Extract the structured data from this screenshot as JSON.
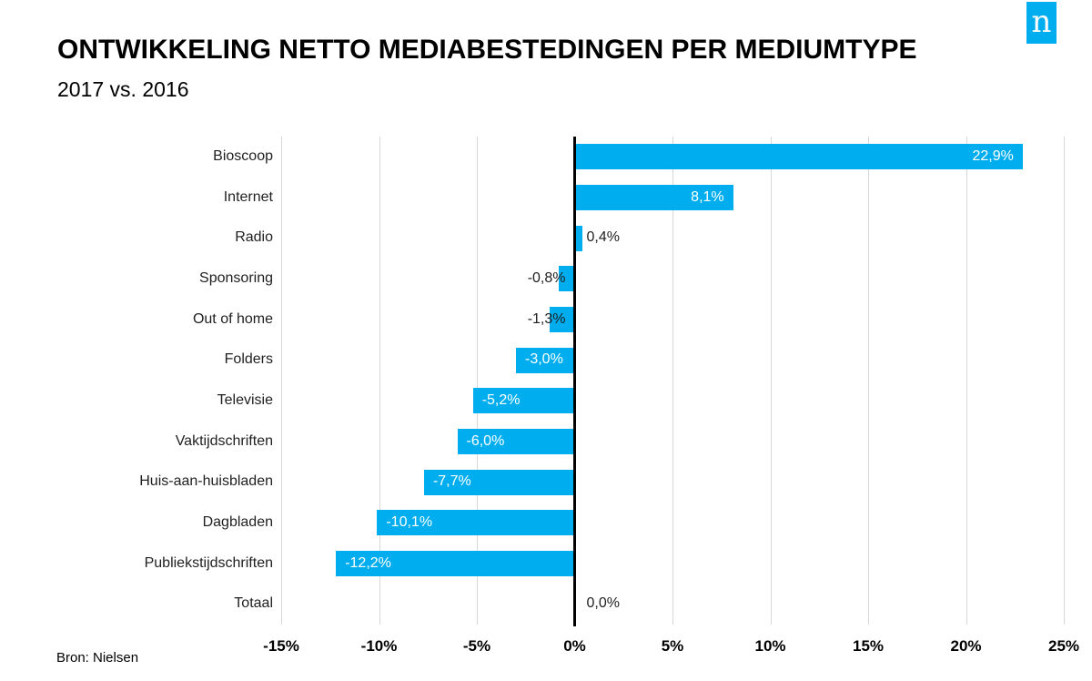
{
  "logo": {
    "letter": "n",
    "color": "#00AEEF"
  },
  "footer": {
    "source": "Bron: Nielsen"
  },
  "chart_data": {
    "type": "bar",
    "orientation": "horizontal",
    "title": "ONTWIKKELING NETTO MEDIABESTEDINGEN PER MEDIUMTYPE",
    "subtitle": "2017 vs. 2016",
    "source": "Bron: Nielsen",
    "categories": [
      "Bioscoop",
      "Internet",
      "Radio",
      "Sponsoring",
      "Out of home",
      "Folders",
      "Televisie",
      "Vaktijdschriften",
      "Huis-aan-huisbladen",
      "Dagbladen",
      "Publiekstijdschriften",
      "Totaal"
    ],
    "values": [
      22.9,
      8.1,
      0.4,
      -0.8,
      -1.3,
      -3.0,
      -5.2,
      -6.0,
      -7.7,
      -10.1,
      -12.2,
      0.0
    ],
    "value_labels": [
      "22,9%",
      "8,1%",
      "0,4%",
      "-0,8%",
      "-1,3%",
      "-3,0%",
      "-5,2%",
      "-6,0%",
      "-7,7%",
      "-10,1%",
      "-12,2%",
      "0,0%"
    ],
    "xlabel": "",
    "ylabel": "",
    "xlim": [
      -15,
      25
    ],
    "x_tick_values": [
      -15,
      -10,
      -5,
      0,
      5,
      10,
      15,
      20,
      25
    ],
    "x_tick_labels": [
      "-15%",
      "-10%",
      "-5%",
      "0%",
      "5%",
      "10%",
      "15%",
      "20%",
      "25%"
    ],
    "grid": true,
    "legend": "none",
    "bar_color": "#00AEEF",
    "axis_color": "#000000",
    "gridline_color": "#D7D7D7"
  }
}
